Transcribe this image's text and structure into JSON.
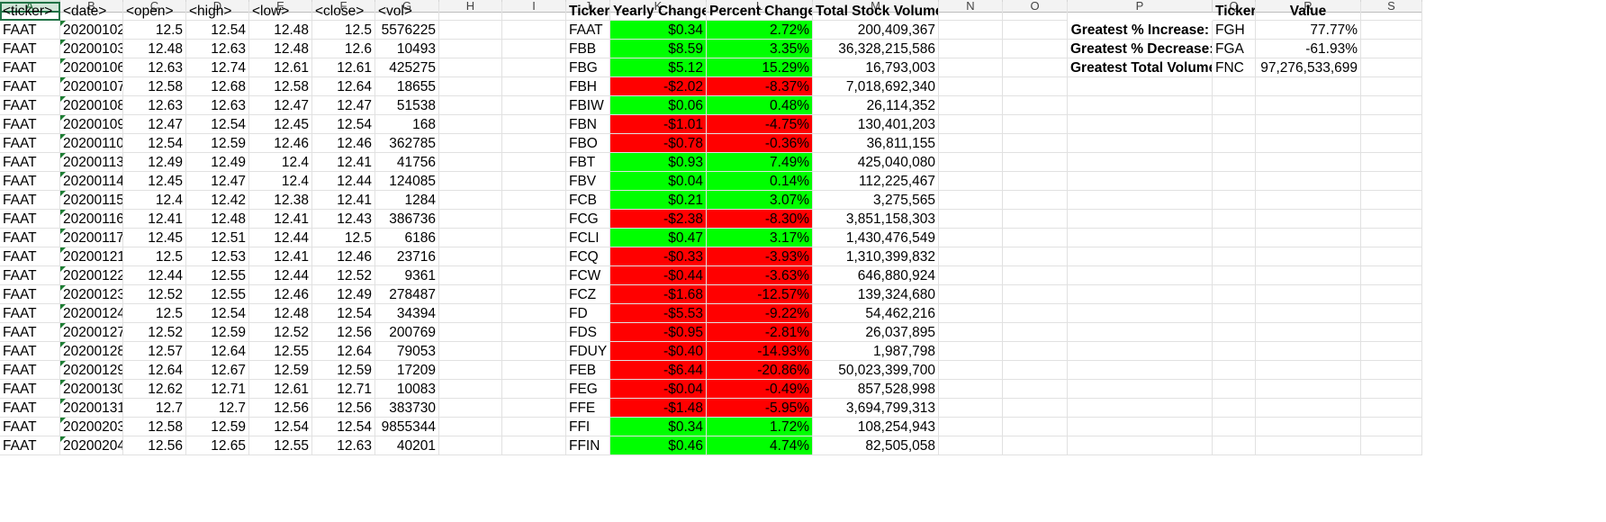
{
  "columns": [
    "A",
    "B",
    "C",
    "D",
    "E",
    "F",
    "G",
    "H",
    "I",
    "J",
    "K",
    "L",
    "M",
    "N",
    "O",
    "P",
    "Q",
    "R",
    "S"
  ],
  "colors": {
    "positive": "#00ff00",
    "negative": "#ff0000",
    "selected_header": "#217346"
  },
  "raw_header": [
    "<ticker>",
    "<date>",
    "<open>",
    "<high>",
    "<low>",
    "<close>",
    "<vol>"
  ],
  "raw_rows": [
    [
      "FAAT",
      "20200102",
      "12.5",
      "12.54",
      "12.48",
      "12.5",
      "5576225"
    ],
    [
      "FAAT",
      "20200103",
      "12.48",
      "12.63",
      "12.48",
      "12.6",
      "10493"
    ],
    [
      "FAAT",
      "20200106",
      "12.63",
      "12.74",
      "12.61",
      "12.61",
      "425275"
    ],
    [
      "FAAT",
      "20200107",
      "12.58",
      "12.68",
      "12.58",
      "12.64",
      "18655"
    ],
    [
      "FAAT",
      "20200108",
      "12.63",
      "12.63",
      "12.47",
      "12.47",
      "51538"
    ],
    [
      "FAAT",
      "20200109",
      "12.47",
      "12.54",
      "12.45",
      "12.54",
      "168"
    ],
    [
      "FAAT",
      "20200110",
      "12.54",
      "12.59",
      "12.46",
      "12.46",
      "362785"
    ],
    [
      "FAAT",
      "20200113",
      "12.49",
      "12.49",
      "12.4",
      "12.41",
      "41756"
    ],
    [
      "FAAT",
      "20200114",
      "12.45",
      "12.47",
      "12.4",
      "12.44",
      "124085"
    ],
    [
      "FAAT",
      "20200115",
      "12.4",
      "12.42",
      "12.38",
      "12.41",
      "1284"
    ],
    [
      "FAAT",
      "20200116",
      "12.41",
      "12.48",
      "12.41",
      "12.43",
      "386736"
    ],
    [
      "FAAT",
      "20200117",
      "12.45",
      "12.51",
      "12.44",
      "12.5",
      "6186"
    ],
    [
      "FAAT",
      "20200121",
      "12.5",
      "12.53",
      "12.41",
      "12.46",
      "23716"
    ],
    [
      "FAAT",
      "20200122",
      "12.44",
      "12.55",
      "12.44",
      "12.52",
      "9361"
    ],
    [
      "FAAT",
      "20200123",
      "12.52",
      "12.55",
      "12.46",
      "12.49",
      "278487"
    ],
    [
      "FAAT",
      "20200124",
      "12.5",
      "12.54",
      "12.48",
      "12.54",
      "34394"
    ],
    [
      "FAAT",
      "20200127",
      "12.52",
      "12.59",
      "12.52",
      "12.56",
      "200769"
    ],
    [
      "FAAT",
      "20200128",
      "12.57",
      "12.64",
      "12.55",
      "12.64",
      "79053"
    ],
    [
      "FAAT",
      "20200129",
      "12.64",
      "12.67",
      "12.59",
      "12.59",
      "17209"
    ],
    [
      "FAAT",
      "20200130",
      "12.62",
      "12.71",
      "12.61",
      "12.71",
      "10083"
    ],
    [
      "FAAT",
      "20200131",
      "12.7",
      "12.7",
      "12.56",
      "12.56",
      "383730"
    ],
    [
      "FAAT",
      "20200203",
      "12.58",
      "12.59",
      "12.54",
      "12.54",
      "9855344"
    ],
    [
      "FAAT",
      "20200204",
      "12.56",
      "12.65",
      "12.55",
      "12.63",
      "40201"
    ]
  ],
  "summary_header": [
    "Ticker",
    "Yearly Change",
    "Percent Change",
    "Total Stock Volume"
  ],
  "summary_rows": [
    [
      "FAAT",
      "$0.34",
      "2.72%",
      "200,409,367"
    ],
    [
      "FBB",
      "$8.59",
      "3.35%",
      "36,328,215,586"
    ],
    [
      "FBG",
      "$5.12",
      "15.29%",
      "16,793,003"
    ],
    [
      "FBH",
      "-$2.02",
      "-8.37%",
      "7,018,692,340"
    ],
    [
      "FBIW",
      "$0.06",
      "0.48%",
      "26,114,352"
    ],
    [
      "FBN",
      "-$1.01",
      "-4.75%",
      "130,401,203"
    ],
    [
      "FBO",
      "-$0.78",
      "-0.36%",
      "36,811,155"
    ],
    [
      "FBT",
      "$0.93",
      "7.49%",
      "425,040,080"
    ],
    [
      "FBV",
      "$0.04",
      "0.14%",
      "112,225,467"
    ],
    [
      "FCB",
      "$0.21",
      "3.07%",
      "3,275,565"
    ],
    [
      "FCG",
      "-$2.38",
      "-8.30%",
      "3,851,158,303"
    ],
    [
      "FCLI",
      "$0.47",
      "3.17%",
      "1,430,476,549"
    ],
    [
      "FCQ",
      "-$0.33",
      "-3.93%",
      "1,310,399,832"
    ],
    [
      "FCW",
      "-$0.44",
      "-3.63%",
      "646,880,924"
    ],
    [
      "FCZ",
      "-$1.68",
      "-12.57%",
      "139,324,680"
    ],
    [
      "FD",
      "-$5.53",
      "-9.22%",
      "54,462,216"
    ],
    [
      "FDS",
      "-$0.95",
      "-2.81%",
      "26,037,895"
    ],
    [
      "FDUY",
      "-$0.40",
      "-14.93%",
      "1,987,798"
    ],
    [
      "FEB",
      "-$6.44",
      "-20.86%",
      "50,023,399,700"
    ],
    [
      "FEG",
      "-$0.04",
      "-0.49%",
      "857,528,998"
    ],
    [
      "FFE",
      "-$1.48",
      "-5.95%",
      "3,694,799,313"
    ],
    [
      "FFI",
      "$0.34",
      "1.72%",
      "108,254,943"
    ],
    [
      "FFIN",
      "$0.46",
      "4.74%",
      "82,505,058"
    ]
  ],
  "greatest_header": [
    "Ticker",
    "Value"
  ],
  "greatest_rows": [
    [
      "Greatest % Increase:",
      "FGH",
      "77.77%"
    ],
    [
      "Greatest % Decrease:",
      "FGA",
      "-61.93%"
    ],
    [
      "Greatest Total Volume:",
      "FNC",
      "97,276,533,699"
    ]
  ]
}
